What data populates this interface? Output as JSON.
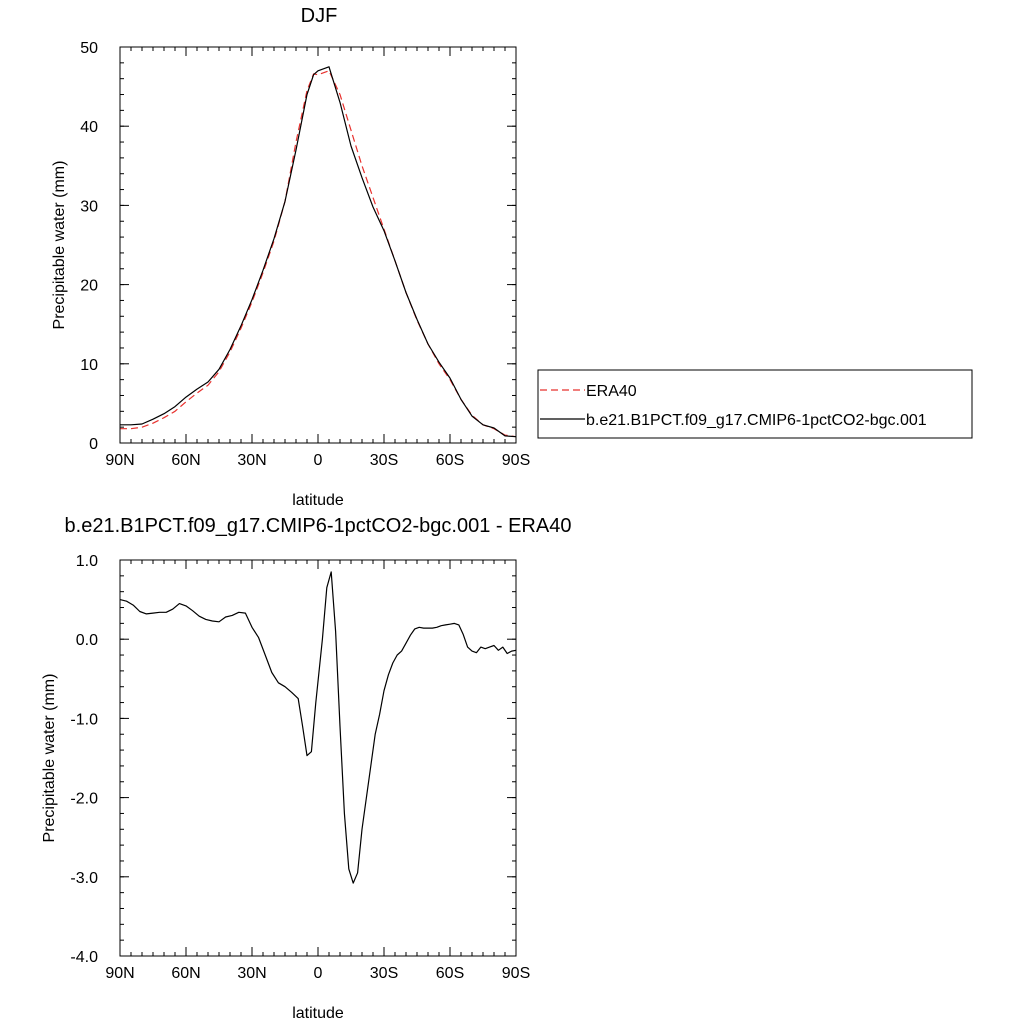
{
  "colors": {
    "model": "#000000",
    "ERA40": "#e8312e"
  },
  "chart_data": [
    {
      "type": "line",
      "title": "DJF",
      "xlabel": "latitude",
      "ylabel": "Precipitable water (mm)",
      "xlim": [
        90,
        -90
      ],
      "ylim": [
        0,
        50
      ],
      "xticks": [
        90,
        60,
        30,
        0,
        -30,
        -60,
        -90
      ],
      "xtick_labels": [
        "90N",
        "60N",
        "30N",
        "0",
        "30S",
        "60S",
        "90S"
      ],
      "yticks": [
        0,
        10,
        20,
        30,
        40,
        50
      ],
      "ytick_labels": [
        "0",
        "10",
        "20",
        "30",
        "40",
        "50"
      ],
      "legend_position": "right",
      "series": [
        {
          "name": "ERA40",
          "style": "dashed",
          "color": "#e8312e",
          "x": [
            90,
            85,
            80,
            75,
            70,
            65,
            60,
            55,
            50,
            45,
            40,
            35,
            30,
            25,
            20,
            15,
            10,
            5,
            2,
            0,
            -5,
            -10,
            -15,
            -20,
            -25,
            -30,
            -35,
            -40,
            -45,
            -50,
            -55,
            -60,
            -65,
            -70,
            -75,
            -80,
            -85,
            -90
          ],
          "y": [
            1.8,
            1.8,
            2.0,
            2.5,
            3.2,
            4.0,
            5.2,
            6.3,
            7.3,
            9.0,
            11.5,
            14.5,
            17.8,
            21.5,
            25.5,
            30.5,
            38.0,
            44.5,
            46.6,
            46.5,
            47.0,
            44.0,
            39.5,
            35.0,
            31.0,
            27.0,
            23.0,
            19.0,
            15.5,
            12.5,
            10.0,
            8.0,
            5.5,
            3.5,
            2.3,
            1.8,
            1.0,
            0.8
          ]
        },
        {
          "name": "b.e21.B1PCT.f09_g17.CMIP6-1pctCO2-bgc.001",
          "style": "solid",
          "color": "#000000",
          "x": [
            90,
            85,
            80,
            75,
            70,
            65,
            60,
            55,
            50,
            45,
            40,
            35,
            30,
            25,
            20,
            15,
            10,
            5,
            2,
            0,
            -5,
            -10,
            -15,
            -20,
            -25,
            -30,
            -35,
            -40,
            -45,
            -50,
            -55,
            -60,
            -65,
            -70,
            -75,
            -80,
            -85,
            -90
          ],
          "y": [
            2.3,
            2.3,
            2.4,
            3.0,
            3.7,
            4.6,
            5.8,
            6.8,
            7.7,
            9.3,
            11.8,
            14.8,
            18.1,
            21.8,
            25.8,
            30.5,
            37.0,
            44.0,
            46.5,
            47.0,
            47.5,
            43.0,
            37.5,
            33.5,
            29.8,
            26.8,
            23.0,
            19.0,
            15.6,
            12.5,
            10.2,
            8.2,
            5.5,
            3.4,
            2.3,
            1.9,
            0.9,
            0.8
          ]
        }
      ]
    },
    {
      "type": "line",
      "title": "b.e21.B1PCT.f09_g17.CMIP6-1pctCO2-bgc.001 - ERA40",
      "xlabel": "latitude",
      "ylabel": "Precipitable water (mm)",
      "xlim": [
        90,
        -90
      ],
      "ylim": [
        -4,
        1
      ],
      "xticks": [
        90,
        60,
        30,
        0,
        -30,
        -60,
        -90
      ],
      "xtick_labels": [
        "90N",
        "60N",
        "30N",
        "0",
        "30S",
        "60S",
        "90S"
      ],
      "yticks": [
        1,
        0,
        -1,
        -2,
        -3,
        -4
      ],
      "ytick_labels": [
        "1.0",
        "0.0",
        "-1.0",
        "-2.0",
        "-3.0",
        "-4.0"
      ],
      "series": [
        {
          "style": "solid",
          "color": "#000000",
          "x": [
            90,
            87,
            84,
            81,
            78,
            75,
            72,
            69,
            66,
            63,
            60,
            57,
            54,
            51,
            48,
            45,
            42,
            39,
            36,
            33,
            30,
            27,
            24,
            21,
            18,
            15,
            12,
            9,
            7,
            5,
            3,
            1,
            -2,
            -4,
            -6,
            -8,
            -10,
            -12,
            -14,
            -16,
            -18,
            -20,
            -22,
            -24,
            -26,
            -28,
            -30,
            -32,
            -34,
            -36,
            -38,
            -40,
            -42,
            -44,
            -46,
            -48,
            -50,
            -52,
            -54,
            -56,
            -58,
            -60,
            -62,
            -64,
            -66,
            -68,
            -70,
            -72,
            -74,
            -76,
            -78,
            -80,
            -82,
            -84,
            -86,
            -88,
            -90
          ],
          "y": [
            0.5,
            0.48,
            0.43,
            0.35,
            0.32,
            0.33,
            0.34,
            0.34,
            0.38,
            0.45,
            0.42,
            0.36,
            0.29,
            0.25,
            0.23,
            0.22,
            0.28,
            0.3,
            0.34,
            0.33,
            0.15,
            0.02,
            -0.2,
            -0.42,
            -0.55,
            -0.6,
            -0.67,
            -0.75,
            -1.1,
            -1.47,
            -1.42,
            -0.8,
            0.0,
            0.65,
            0.85,
            0.1,
            -1.1,
            -2.2,
            -2.9,
            -3.08,
            -2.95,
            -2.4,
            -2.0,
            -1.6,
            -1.2,
            -0.95,
            -0.65,
            -0.45,
            -0.3,
            -0.2,
            -0.15,
            -0.05,
            0.05,
            0.13,
            0.15,
            0.14,
            0.14,
            0.14,
            0.15,
            0.17,
            0.18,
            0.19,
            0.2,
            0.18,
            0.06,
            -0.1,
            -0.15,
            -0.17,
            -0.1,
            -0.12,
            -0.1,
            -0.08,
            -0.14,
            -0.1,
            -0.18,
            -0.15,
            -0.14
          ]
        }
      ]
    }
  ]
}
